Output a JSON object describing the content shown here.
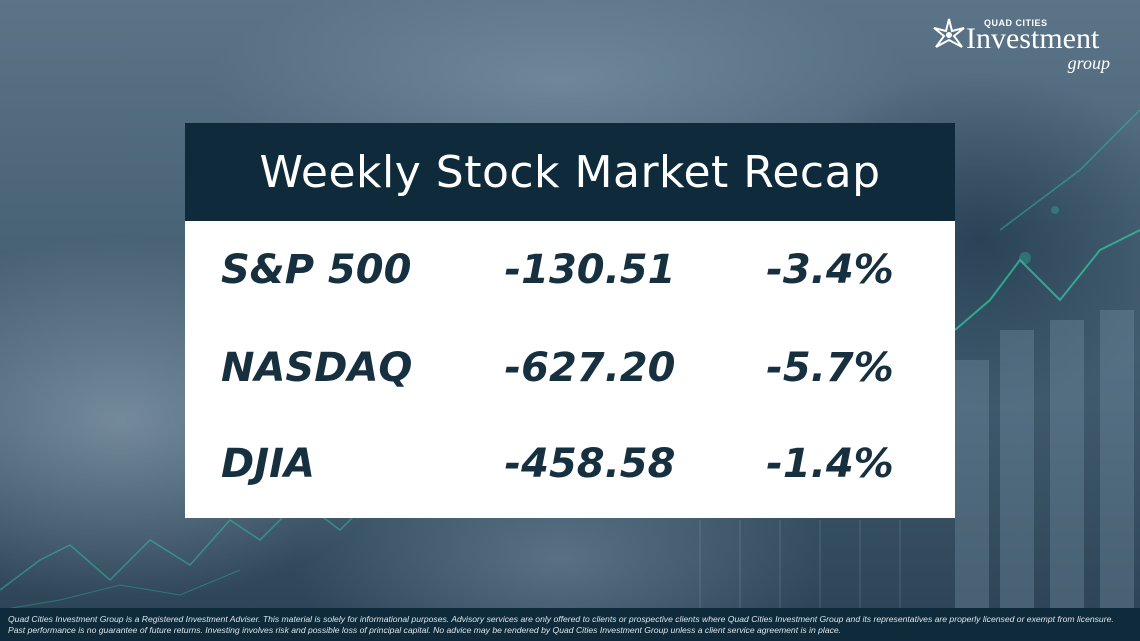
{
  "brand": {
    "logo_line1": "QUAD CITIES",
    "logo_line2": "Investment",
    "logo_line3": "group",
    "logo_icon": "star-icon",
    "text_color": "#ffffff"
  },
  "recap": {
    "title": "Weekly Stock Market Recap",
    "header_color": "#0f2a3a",
    "rows": [
      {
        "name": "S&P 500",
        "points": "-130.51",
        "percent": "-3.4%"
      },
      {
        "name": "NASDAQ",
        "points": "-627.20",
        "percent": "-5.7%"
      },
      {
        "name": "DJIA",
        "points": "-458.58",
        "percent": "-1.4%"
      }
    ]
  },
  "footer": {
    "disclaimer": "Quad Cities Investment Group is a Registered Investment Adviser. This material is solely for informational purposes. Advisory services are only offered to clients or prospective clients where Quad Cities Investment Group and its representatives are properly licensed or exempt from licensure. Past performance is no guarantee of future returns. Investing involves risk and possible loss of principal capital. No advice may be rendered by Quad Cities Investment Group unless a client service agreement is in place."
  }
}
